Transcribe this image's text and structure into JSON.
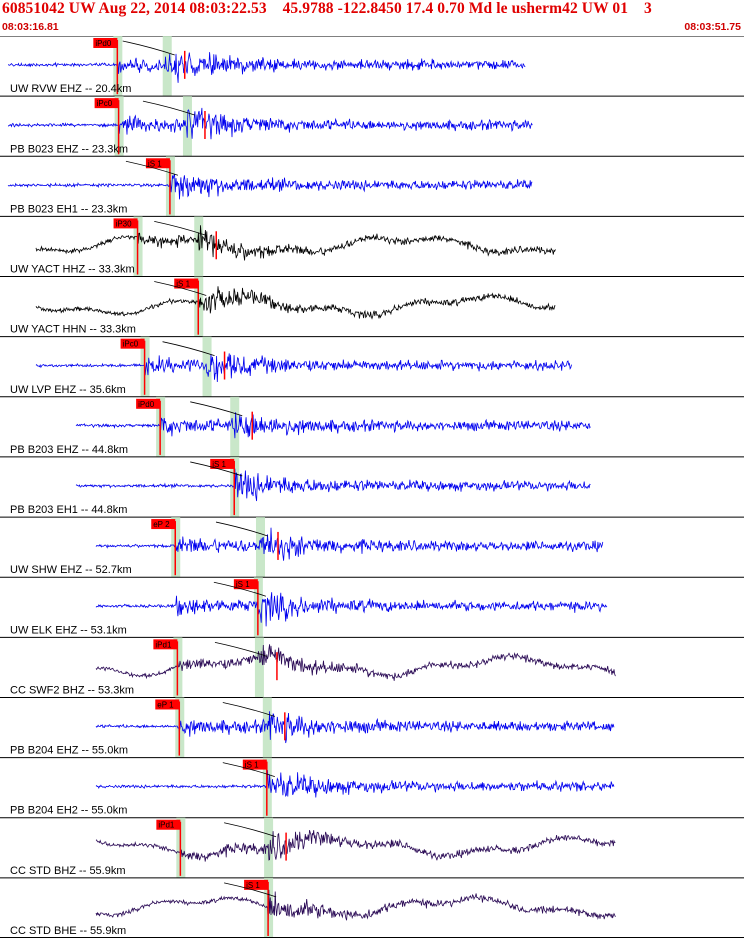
{
  "header": {
    "title": "60851042 UW Aug 22, 2014 08:03:22.53    45.9788 -122.8450 17.4 0.70 Md le usherm42 UW 01    3",
    "start_time": "08:03:16.81",
    "end_time": "08:03:51.75"
  },
  "colors": {
    "background": "#ffffff",
    "separator": "#000000",
    "pick_band": "#bfe3bf",
    "pick_label_bg": "#ff0000",
    "pick_line": "#ff0000",
    "trace_blue": "#0000ee",
    "trace_black": "#000000",
    "trace_purple": "#2a0a55",
    "curve": "#000000"
  },
  "traces": [
    {
      "label": "UW RVW EHZ -- 20.4km",
      "color": "blue",
      "pick": {
        "label": "iPd0",
        "time": 5.51
      },
      "s_time": 7.83,
      "onset": 5.51,
      "end": 24.67
    },
    {
      "label": "PB B023 EHZ -- 23.3km",
      "color": "blue",
      "pick": {
        "label": "iPc0",
        "time": 5.57
      },
      "s_time": 8.78,
      "onset": 5.57,
      "end": 25.0
    },
    {
      "label": "PB B023 EH1 -- 23.3km",
      "color": "blue",
      "pick": {
        "label": "iS 1",
        "time": 7.98
      },
      "s_time": 7.98,
      "onset": 7.98,
      "end": 25.0
    },
    {
      "label": "UW YACT HHZ -- 33.3km",
      "color": "black",
      "pick": {
        "label": "iP30",
        "time": 6.46
      },
      "s_time": 9.31,
      "onset": 6.46,
      "end": 26.11
    },
    {
      "label": "UW YACT HHN -- 33.3km",
      "color": "black",
      "pick": {
        "label": "iS 1",
        "time": 9.31
      },
      "s_time": 9.31,
      "onset": 9.31,
      "end": 26.11
    },
    {
      "label": "UW LVP EHZ -- 35.6km",
      "color": "blue",
      "pick": {
        "label": "iPc0",
        "time": 6.79
      },
      "s_time": 9.7,
      "onset": 6.79,
      "end": 26.84
    },
    {
      "label": "PB B203 EHZ -- 44.8km",
      "color": "blue",
      "pick": {
        "label": "iPd0",
        "time": 7.52
      },
      "s_time": 11.0,
      "onset": 7.52,
      "end": 27.76
    },
    {
      "label": "PB B203 EH1 -- 44.8km",
      "color": "blue",
      "pick": {
        "label": "iS 1",
        "time": 11.0
      },
      "s_time": 11.0,
      "onset": 11.0,
      "end": 27.76
    },
    {
      "label": "UW SHW EHZ -- 52.7km",
      "color": "blue",
      "pick": {
        "label": "eP 2",
        "time": 8.23
      },
      "s_time": 12.21,
      "onset": 8.23,
      "end": 28.31
    },
    {
      "label": "UW ELK EHZ -- 53.1km",
      "color": "blue",
      "pick": {
        "label": "iS 1",
        "time": 12.11
      },
      "s_time": 12.11,
      "onset": 8.25,
      "end": 28.51
    },
    {
      "label": "CC SWF2 BHZ -- 53.3km",
      "color": "purple",
      "pick": {
        "label": "iPd1",
        "time": 8.33
      },
      "s_time": 12.16,
      "onset": 8.33,
      "end": 28.91
    },
    {
      "label": "PB B204 EHZ -- 55.0km",
      "color": "blue",
      "pick": {
        "label": "eP 1",
        "time": 8.42
      },
      "s_time": 12.53,
      "onset": 8.42,
      "end": 28.84
    },
    {
      "label": "PB B204 EH2 -- 55.0km",
      "color": "blue",
      "pick": {
        "label": "iS 1",
        "time": 12.53
      },
      "s_time": 12.53,
      "onset": 12.53,
      "end": 28.84
    },
    {
      "label": "CC STD BHZ -- 55.9km",
      "color": "purple",
      "pick": {
        "label": "iPd1",
        "time": 8.47
      },
      "s_time": 12.59,
      "onset": 8.47,
      "end": 28.91
    },
    {
      "label": "CC STD BHE -- 55.9km",
      "color": "purple",
      "pick": {
        "label": "iS 1",
        "time": 12.59
      },
      "s_time": 12.59,
      "onset": 12.59,
      "end": 28.91
    }
  ]
}
